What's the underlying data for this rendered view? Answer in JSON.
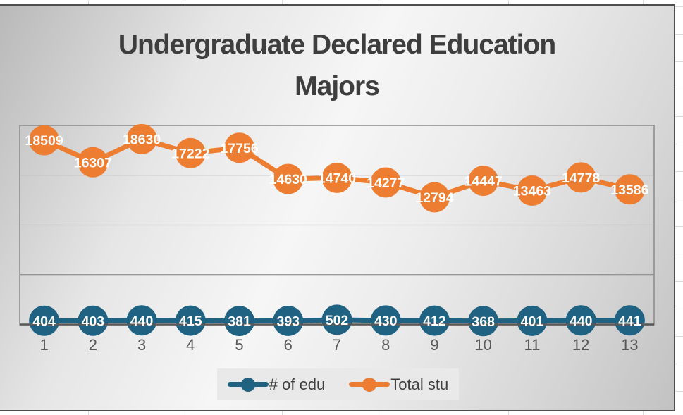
{
  "chart_title": {
    "line1": "Undergraduate Declared Education",
    "line2": "Majors"
  },
  "x_axis": {
    "tick_labels": [
      "1",
      "2",
      "3",
      "4",
      "5",
      "6",
      "7",
      "8",
      "9",
      "10",
      "11",
      "12",
      "13"
    ]
  },
  "legend": {
    "items": [
      {
        "label": "# of edu"
      },
      {
        "label": "Total stu"
      }
    ]
  },
  "chart_data": {
    "type": "line",
    "title": "Undergraduate Declared Education Majors",
    "categories": [
      1,
      2,
      3,
      4,
      5,
      6,
      7,
      8,
      9,
      10,
      11,
      12,
      13
    ],
    "series": [
      {
        "name": "# of edu",
        "color": "#1F6282",
        "values": [
          404,
          403,
          440,
          415,
          381,
          393,
          502,
          430,
          412,
          368,
          401,
          440,
          441
        ],
        "data_label_color": "#FFFFFF"
      },
      {
        "name": "Total stu",
        "color": "#ED7D31",
        "values": [
          18509,
          16307,
          18630,
          17222,
          17756,
          14630,
          14740,
          14277,
          12794,
          14447,
          13463,
          14778,
          13586
        ],
        "data_label_color": "#FFFFFF"
      }
    ],
    "xlabel": "",
    "ylabel": "",
    "ylim": [
      0,
      20000
    ],
    "y_axis_labels_visible": false,
    "gridlines": [
      {
        "value": 5000,
        "emphasis": true
      },
      {
        "value": 10000,
        "emphasis": false
      },
      {
        "value": 15000,
        "emphasis": false
      }
    ],
    "legend_position": "bottom",
    "data_label_position": "center",
    "marker_style": "large-circle"
  },
  "colors": {
    "series_1": "#1F6282",
    "series_2": "#ED7D31",
    "axis_label_text": "#595959",
    "title_text": "#3E3E3E",
    "legend_text": "#3F3F3F",
    "legend_background": "#E9E9E9",
    "plot_border": "#8A8A8A",
    "gridline_light": "#C1C1C1",
    "gridline_dark": "#7F7F7F",
    "chart_border": "#4E4E4E",
    "x_axis_line": "#595959"
  }
}
